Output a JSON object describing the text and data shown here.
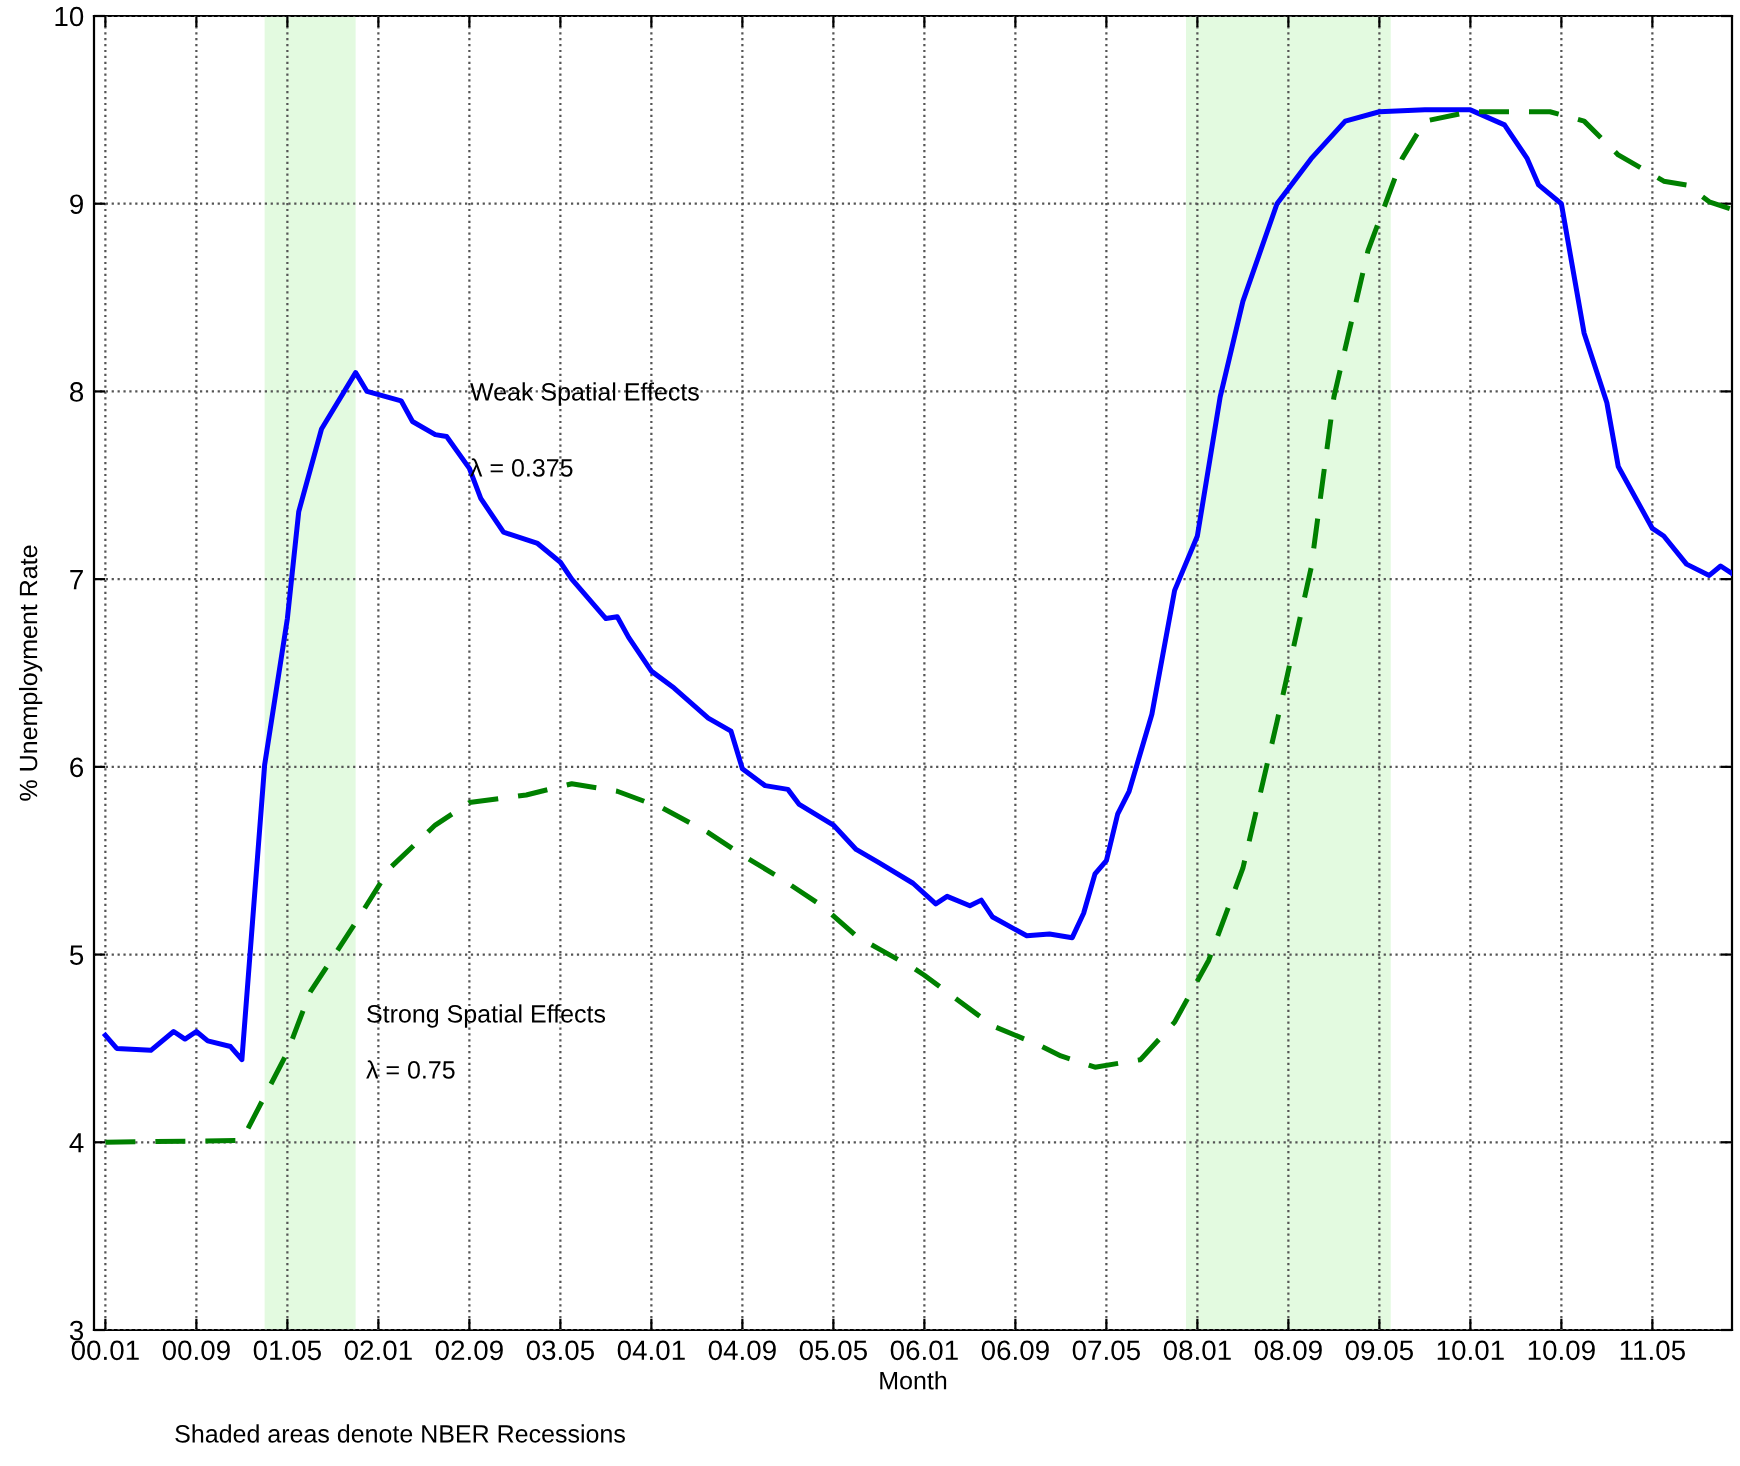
{
  "chart_data": {
    "type": "line",
    "xlabel": "Month",
    "ylabel": "% Unemployment Rate",
    "xlim": [
      "1999-12",
      "2011-12"
    ],
    "xticks": [
      {
        "value": "2000-01",
        "label": "00.01"
      },
      {
        "value": "2000-09",
        "label": "00.09"
      },
      {
        "value": "2001-05",
        "label": "01.05"
      },
      {
        "value": "2002-01",
        "label": "02.01"
      },
      {
        "value": "2002-09",
        "label": "02.09"
      },
      {
        "value": "2003-05",
        "label": "03.05"
      },
      {
        "value": "2004-01",
        "label": "04.01"
      },
      {
        "value": "2004-09",
        "label": "04.09"
      },
      {
        "value": "2005-05",
        "label": "05.05"
      },
      {
        "value": "2006-01",
        "label": "06.01"
      },
      {
        "value": "2006-09",
        "label": "06.09"
      },
      {
        "value": "2007-05",
        "label": "07.05"
      },
      {
        "value": "2008-01",
        "label": "08.01"
      },
      {
        "value": "2008-09",
        "label": "08.09"
      },
      {
        "value": "2009-05",
        "label": "09.05"
      },
      {
        "value": "2010-01",
        "label": "10.01"
      },
      {
        "value": "2010-09",
        "label": "10.09"
      },
      {
        "value": "2011-05",
        "label": "11.05"
      }
    ],
    "ylim": [
      3,
      10
    ],
    "yticks": [
      3,
      4,
      5,
      6,
      7,
      8,
      9,
      10
    ],
    "grid": true,
    "series": [
      {
        "color": "#0000ff",
        "line_style": "solid",
        "x": [
          "2000-01",
          "2000-02",
          "2000-05",
          "2000-07",
          "2000-08",
          "2000-09",
          "2000-10",
          "2000-12",
          "2001-01",
          "2001-03",
          "2001-05",
          "2001-06",
          "2001-08",
          "2001-11",
          "2001-12",
          "2002-03",
          "2002-04",
          "2002-06",
          "2002-07",
          "2002-09",
          "2002-10",
          "2002-12",
          "2003-03",
          "2003-05",
          "2003-06",
          "2003-09",
          "2003-10",
          "2003-11",
          "2004-01",
          "2004-03",
          "2004-06",
          "2004-08",
          "2004-09",
          "2004-11",
          "2005-01",
          "2005-02",
          "2005-05",
          "2005-07",
          "2005-09",
          "2005-12",
          "2006-02",
          "2006-03",
          "2006-05",
          "2006-06",
          "2006-07",
          "2006-10",
          "2006-12",
          "2007-02",
          "2007-03",
          "2007-04",
          "2007-05",
          "2007-06",
          "2007-07",
          "2007-09",
          "2007-11",
          "2008-01",
          "2008-03",
          "2008-05",
          "2008-08",
          "2008-11",
          "2009-02",
          "2009-05",
          "2009-09",
          "2010-01",
          "2010-04",
          "2010-06",
          "2010-07",
          "2010-09",
          "2010-11",
          "2011-01",
          "2011-02",
          "2011-05",
          "2011-06",
          "2011-08",
          "2011-10",
          "2011-11",
          "2011-12"
        ],
        "values": [
          4.57,
          4.5,
          4.49,
          4.59,
          4.55,
          4.59,
          4.54,
          4.51,
          4.44,
          6.01,
          6.79,
          7.36,
          7.8,
          8.1,
          8.0,
          7.95,
          7.84,
          7.77,
          7.76,
          7.59,
          7.43,
          7.25,
          7.19,
          7.09,
          7.0,
          6.79,
          6.8,
          6.69,
          6.51,
          6.42,
          6.26,
          6.19,
          5.99,
          5.9,
          5.88,
          5.8,
          5.69,
          5.56,
          5.49,
          5.38,
          5.27,
          5.31,
          5.26,
          5.29,
          5.2,
          5.1,
          5.11,
          5.09,
          5.22,
          5.43,
          5.5,
          5.75,
          5.87,
          6.28,
          6.94,
          7.23,
          7.97,
          8.48,
          9.0,
          9.24,
          9.44,
          9.49,
          9.5,
          9.5,
          9.42,
          9.24,
          9.1,
          9.0,
          8.31,
          7.94,
          7.6,
          7.27,
          7.23,
          7.08,
          7.02,
          7.07,
          7.03
        ]
      },
      {
        "color": "#008000",
        "line_style": "dashed",
        "x": [
          "2000-01",
          "2001-01",
          "2001-05",
          "2001-07",
          "2001-11",
          "2002-02",
          "2002-06",
          "2002-09",
          "2003-02",
          "2003-06",
          "2003-10",
          "2004-02",
          "2004-06",
          "2004-09",
          "2004-12",
          "2005-04",
          "2005-07",
          "2005-09",
          "2005-12",
          "2006-01",
          "2006-07",
          "2006-11",
          "2007-01",
          "2007-04",
          "2007-08",
          "2007-11",
          "2008-02",
          "2008-05",
          "2008-08",
          "2008-11",
          "2009-01",
          "2009-04",
          "2009-07",
          "2009-09",
          "2010-01",
          "2010-08",
          "2010-11",
          "2011-02",
          "2011-06",
          "2011-08",
          "2011-10",
          "2011-12"
        ],
        "values": [
          4.0,
          4.01,
          4.48,
          4.8,
          5.17,
          5.46,
          5.69,
          5.81,
          5.85,
          5.91,
          5.87,
          5.78,
          5.65,
          5.53,
          5.42,
          5.26,
          5.1,
          5.03,
          4.93,
          4.89,
          4.62,
          4.52,
          4.46,
          4.4,
          4.44,
          4.64,
          4.97,
          5.46,
          6.24,
          7.06,
          7.97,
          8.75,
          9.24,
          9.44,
          9.49,
          9.49,
          9.44,
          9.26,
          9.12,
          9.1,
          9.01,
          8.97
        ]
      }
    ],
    "bands": [
      {
        "axis": "x",
        "from": "2001-03",
        "to": "2001-11",
        "color": "#e3fae0"
      },
      {
        "axis": "x",
        "from": "2007-12",
        "to": "2009-06",
        "color": "#e3fae0"
      }
    ],
    "annotations": [
      "Weak Spatial Effects",
      "λ = 0.375",
      "Strong Spatial Effects",
      "λ = 0.75",
      "Shaded areas denote NBER Recessions"
    ]
  }
}
